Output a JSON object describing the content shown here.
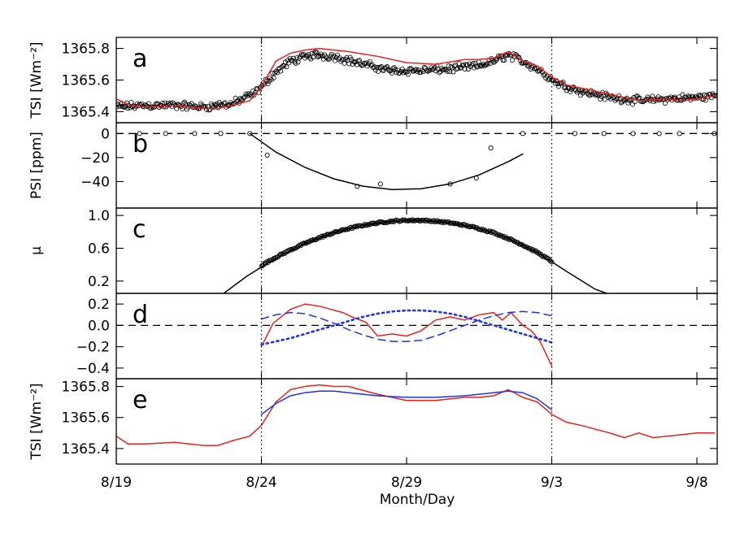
{
  "chart_data": {
    "type": "line",
    "xlabel": "Month/Day",
    "x_ticks": [
      "8/19",
      "8/24",
      "8/29",
      "9/3",
      "9/8"
    ],
    "x_tick_days": [
      0,
      5,
      10,
      15,
      20
    ],
    "xlim_days": [
      0,
      20.7
    ],
    "vertical_markers_days": [
      5.0,
      15.0
    ],
    "panels": [
      {
        "letter": "a",
        "ylabel": "TSI [Wm⁻²]",
        "ylim": [
          1365.33,
          1365.87
        ],
        "y_ticks": [
          1365.4,
          1365.6,
          1365.8
        ],
        "y_tick_labels": [
          "1365.4",
          "1365.6",
          "1365.8"
        ],
        "scatter": {
          "marker": "open-circle",
          "x": [
            0.0,
            1.0,
            2.0,
            3.0,
            4.0,
            4.8,
            5.5,
            6.0,
            6.8,
            7.5,
            8.5,
            9.5,
            10.5,
            11.5,
            12.5,
            13.0,
            13.5,
            14.0,
            14.5,
            15.2,
            16.0,
            17.0,
            18.0,
            19.0,
            20.0,
            20.6
          ],
          "y": [
            1365.43,
            1365.44,
            1365.44,
            1365.43,
            1365.45,
            1365.52,
            1365.65,
            1365.72,
            1365.76,
            1365.75,
            1365.7,
            1365.66,
            1365.66,
            1365.67,
            1365.69,
            1365.72,
            1365.76,
            1365.72,
            1365.67,
            1365.58,
            1365.53,
            1365.49,
            1365.47,
            1365.48,
            1365.49,
            1365.5
          ],
          "spread": 0.03
        },
        "lines": [
          {
            "color": "#e8211d",
            "dash": "solid",
            "x": [
              0.0,
              0.5,
              1.0,
              2.0,
              3.0,
              3.5,
              4.0,
              4.6,
              5.0,
              5.5,
              6.0,
              6.5,
              7.0,
              7.5,
              8.0,
              9.0,
              10.0,
              11.0,
              12.0,
              12.5,
              13.0,
              13.5,
              14.0,
              14.5,
              15.0,
              15.5,
              16.0,
              17.0,
              18.0,
              19.0,
              19.5,
              20.0,
              20.6
            ],
            "y": [
              1365.48,
              1365.44,
              1365.43,
              1365.44,
              1365.42,
              1365.42,
              1365.44,
              1365.47,
              1365.56,
              1365.72,
              1365.77,
              1365.79,
              1365.8,
              1365.79,
              1365.78,
              1365.75,
              1365.71,
              1365.7,
              1365.73,
              1365.73,
              1365.74,
              1365.78,
              1365.72,
              1365.69,
              1365.62,
              1365.57,
              1365.55,
              1365.51,
              1365.47,
              1365.48,
              1365.47,
              1365.48,
              1365.5
            ]
          }
        ]
      },
      {
        "letter": "b",
        "ylabel": "PSI [ppm]",
        "ylim": [
          -62,
          9
        ],
        "y_ticks": [
          -40,
          -20,
          0
        ],
        "y_tick_labels": [
          "−40",
          "−20",
          "0"
        ],
        "hline": {
          "y": 0,
          "dash": "dashed"
        },
        "scatter": {
          "marker": "open-circle",
          "x": [
            0.8,
            1.7,
            2.7,
            3.6,
            4.6,
            5.2,
            8.3,
            9.1,
            11.5,
            12.4,
            12.9,
            14.0,
            15.8,
            16.8,
            17.8,
            18.7,
            19.4,
            20.6
          ],
          "y": [
            0,
            0,
            0,
            0,
            0,
            -18,
            -44,
            -42,
            -42,
            -37,
            -12,
            0,
            0,
            0,
            0,
            0,
            0,
            0
          ]
        },
        "lines": [
          {
            "color": "#000000",
            "dash": "solid",
            "x": [
              4.6,
              5.5,
              6.5,
              7.5,
              8.5,
              9.5,
              10.5,
              11.5,
              12.5,
              13.5,
              14.0
            ],
            "y": [
              0,
              -15.5,
              -28.2,
              -37.7,
              -43.8,
              -46.6,
              -45.9,
              -41.9,
              -34.4,
              -23.4,
              -17
            ]
          }
        ]
      },
      {
        "letter": "c",
        "ylabel": "μ",
        "ylim": [
          0.05,
          1.09
        ],
        "y_ticks": [
          0.2,
          0.6,
          1.0
        ],
        "y_tick_labels": [
          "0.2",
          "0.6",
          "1.0"
        ],
        "scatter": {
          "marker": "open-circle",
          "x": [
            5.0,
            5.5,
            6.0,
            6.5,
            7.0,
            7.5,
            8.0,
            8.5,
            9.0,
            9.5,
            10.0,
            10.5,
            11.0,
            11.5,
            12.0,
            12.5,
            13.0,
            13.5,
            14.0,
            14.5,
            15.0
          ],
          "y": [
            0.39,
            0.49,
            0.58,
            0.66,
            0.73,
            0.79,
            0.84,
            0.88,
            0.91,
            0.93,
            0.94,
            0.94,
            0.93,
            0.91,
            0.88,
            0.84,
            0.79,
            0.72,
            0.64,
            0.55,
            0.44
          ]
        },
        "lines": [
          {
            "color": "#000000",
            "dash": "solid",
            "x": [
              3.7,
              4.5,
              5.5,
              6.5,
              7.5,
              8.5,
              9.5,
              10.0,
              10.5,
              11.5,
              12.5,
              13.5,
              14.5,
              15.5,
              16.5,
              16.9
            ],
            "y": [
              0.05,
              0.26,
              0.48,
              0.66,
              0.79,
              0.88,
              0.93,
              0.94,
              0.94,
              0.91,
              0.84,
              0.72,
              0.55,
              0.32,
              0.1,
              0.05
            ]
          }
        ]
      },
      {
        "letter": "d",
        "ylabel": "",
        "ylim": [
          -0.5,
          0.3
        ],
        "y_ticks": [
          -0.4,
          -0.2,
          0.0,
          0.2
        ],
        "y_tick_labels": [
          "−0.4",
          "−0.2",
          "0.0",
          "0.2"
        ],
        "hline": {
          "y": 0,
          "dash": "dashed"
        },
        "lines": [
          {
            "color": "#e8211d",
            "dash": "solid",
            "x": [
              5.0,
              5.4,
              6.0,
              6.5,
              7.0,
              7.4,
              7.8,
              8.2,
              8.6,
              9.0,
              9.5,
              10.0,
              10.5,
              11.0,
              11.5,
              12.0,
              12.5,
              13.0,
              13.3,
              13.6,
              14.0,
              14.3,
              14.6,
              15.0
            ],
            "y": [
              -0.2,
              0.02,
              0.15,
              0.2,
              0.18,
              0.15,
              0.12,
              0.07,
              0.03,
              -0.1,
              -0.08,
              -0.1,
              -0.05,
              0.05,
              0.08,
              0.05,
              0.1,
              0.12,
              0.05,
              0.12,
              0.0,
              -0.05,
              -0.15,
              -0.38
            ]
          },
          {
            "color": "#1f32e6",
            "dash": "dashed",
            "x": [
              5.0,
              5.5,
              6.0,
              6.5,
              7.0,
              7.5,
              8.0,
              8.5,
              9.0,
              9.5,
              10.0,
              10.5,
              11.0,
              11.5,
              12.0,
              12.5,
              13.0,
              13.5,
              14.0,
              14.5,
              15.0
            ],
            "y": [
              0.06,
              0.1,
              0.12,
              0.11,
              0.07,
              0.02,
              -0.04,
              -0.09,
              -0.13,
              -0.15,
              -0.15,
              -0.14,
              -0.1,
              -0.05,
              0.0,
              0.05,
              0.09,
              0.12,
              0.13,
              0.12,
              0.09
            ]
          },
          {
            "color": "#1f32e6",
            "dash": "dotted",
            "x": [
              5.0,
              5.5,
              6.0,
              6.5,
              7.0,
              7.5,
              8.0,
              8.5,
              9.0,
              9.5,
              10.0,
              10.5,
              11.0,
              11.5,
              12.0,
              12.5,
              13.0,
              13.5,
              14.0,
              14.5,
              15.0
            ],
            "y": [
              -0.18,
              -0.15,
              -0.12,
              -0.08,
              -0.04,
              0.0,
              0.04,
              0.08,
              0.11,
              0.13,
              0.14,
              0.14,
              0.13,
              0.11,
              0.08,
              0.04,
              0.0,
              -0.04,
              -0.08,
              -0.12,
              -0.16
            ]
          }
        ]
      },
      {
        "letter": "e",
        "ylabel": "TSI [Wm⁻²]",
        "ylim": [
          1365.3,
          1365.85
        ],
        "y_ticks": [
          1365.4,
          1365.6,
          1365.8
        ],
        "y_tick_labels": [
          "1365.4",
          "1365.6",
          "1365.8"
        ],
        "lines": [
          {
            "color": "#e8211d",
            "dash": "solid",
            "x": [
              0.0,
              0.4,
              1.0,
              2.0,
              3.0,
              3.5,
              4.0,
              4.6,
              5.0,
              5.5,
              6.0,
              6.5,
              7.0,
              7.5,
              8.0,
              9.0,
              10.0,
              11.0,
              12.0,
              12.5,
              13.0,
              13.5,
              14.0,
              14.5,
              15.0,
              15.5,
              16.0,
              17.0,
              17.5,
              18.0,
              18.5,
              19.0,
              19.5,
              20.0,
              20.6
            ],
            "y": [
              1365.48,
              1365.43,
              1365.43,
              1365.44,
              1365.42,
              1365.42,
              1365.45,
              1365.48,
              1365.55,
              1365.7,
              1365.78,
              1365.8,
              1365.81,
              1365.8,
              1365.8,
              1365.75,
              1365.71,
              1365.71,
              1365.73,
              1365.73,
              1365.74,
              1365.78,
              1365.73,
              1365.7,
              1365.62,
              1365.57,
              1365.55,
              1365.5,
              1365.47,
              1365.5,
              1365.47,
              1365.48,
              1365.49,
              1365.5,
              1365.5
            ]
          },
          {
            "color": "#1f32e6",
            "dash": "solid",
            "x": [
              5.0,
              5.5,
              6.0,
              6.5,
              7.0,
              7.5,
              8.0,
              9.0,
              10.0,
              11.0,
              12.0,
              13.0,
              13.5,
              14.0,
              14.5,
              15.0
            ],
            "y": [
              1365.62,
              1365.69,
              1365.74,
              1365.76,
              1365.77,
              1365.77,
              1365.76,
              1365.74,
              1365.73,
              1365.73,
              1365.74,
              1365.76,
              1365.77,
              1365.76,
              1365.72,
              1365.65
            ]
          }
        ]
      }
    ]
  }
}
